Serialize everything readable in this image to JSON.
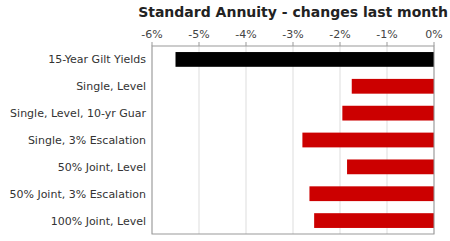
{
  "chart_data": {
    "type": "bar",
    "orientation": "horizontal",
    "title": "Standard Annuity - changes last month",
    "categories": [
      "15-Year Gilt Yields",
      "Single, Level",
      "Single, Level, 10-yr Guar",
      "Single, 3% Escalation",
      "50% Joint, Level",
      "50% Joint, 3% Escalation",
      "100% Joint, Level"
    ],
    "values": [
      -5.5,
      -1.75,
      -1.95,
      -2.8,
      -1.85,
      -2.65,
      -2.55
    ],
    "colors": [
      "#000000",
      "#cc0000",
      "#cc0000",
      "#cc0000",
      "#cc0000",
      "#cc0000",
      "#cc0000"
    ],
    "xlim": [
      -6,
      0
    ],
    "xticks": [
      {
        "value": -6,
        "label": "-6%"
      },
      {
        "value": -5,
        "label": "-5%"
      },
      {
        "value": -4,
        "label": "-4%"
      },
      {
        "value": -3,
        "label": "-3%"
      },
      {
        "value": -2,
        "label": "-2%"
      },
      {
        "value": -1,
        "label": "-1%"
      },
      {
        "value": 0,
        "label": "0%"
      }
    ],
    "grid": true
  }
}
